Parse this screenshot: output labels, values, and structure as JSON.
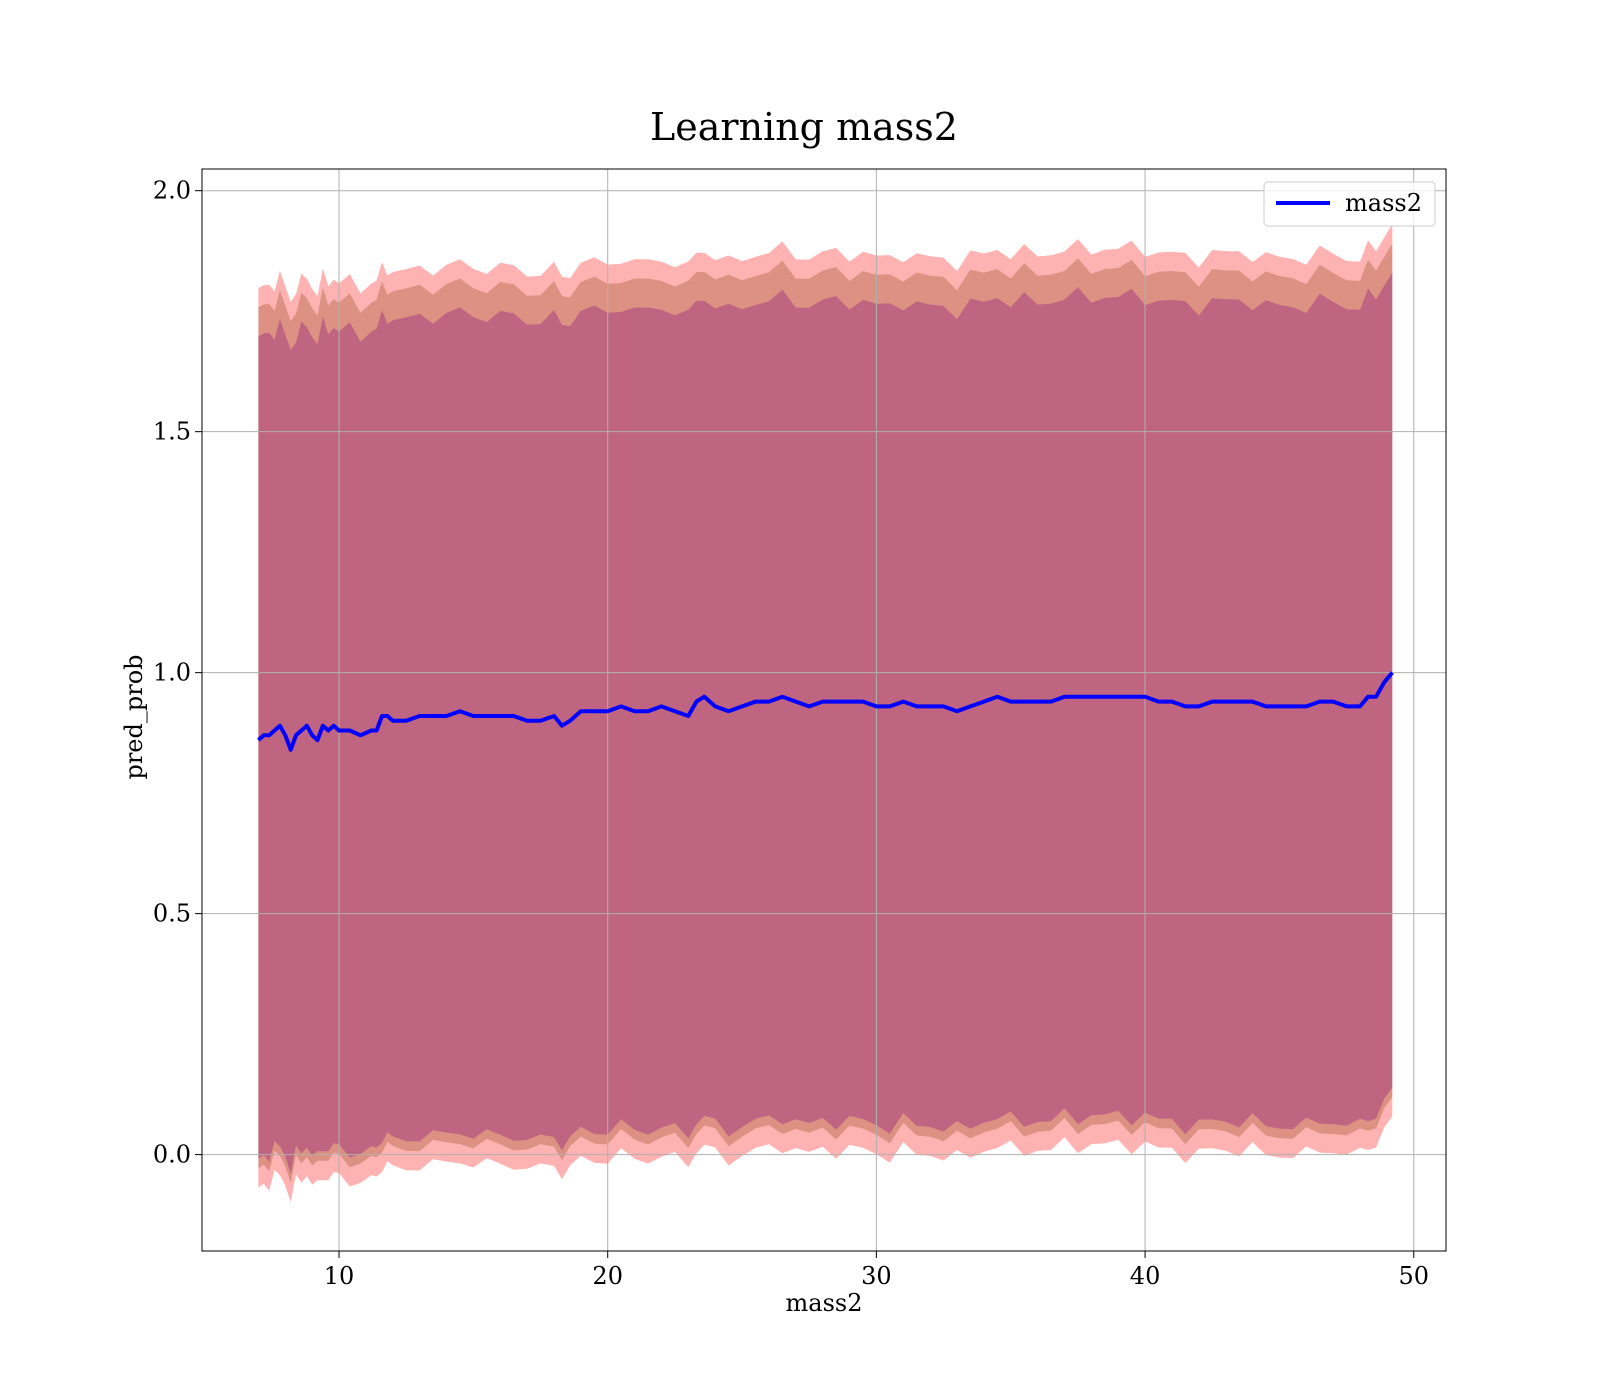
{
  "chart_data": {
    "type": "line",
    "title": "Learning mass2",
    "xlabel": "mass2",
    "ylabel": "pred_prob",
    "xlim": [
      4.9,
      51.2
    ],
    "ylim": [
      -0.2,
      2.045
    ],
    "xticks": [
      10,
      20,
      30,
      40,
      50
    ],
    "yticks": [
      0.0,
      0.5,
      1.0,
      1.5,
      2.0
    ],
    "xtick_labels": [
      "10",
      "20",
      "30",
      "40",
      "50"
    ],
    "ytick_labels": [
      "0.0",
      "0.5",
      "1.0",
      "1.5",
      "2.0"
    ],
    "grid": true,
    "legend": {
      "position": "top-right",
      "entries": [
        "mass2"
      ]
    },
    "colors": {
      "line": "#0000ff",
      "outer_band": "#ff0000",
      "inner_band": "#8b4513",
      "core_band": "#800080",
      "grid": "#b0b0b0"
    },
    "band_opacity": {
      "outer": 0.3,
      "inner": 0.3,
      "core": 0.3
    },
    "band_halfwidths": {
      "outer": 0.93,
      "inner": 0.89,
      "core": 0.87
    },
    "series": [
      {
        "name": "mass2",
        "x": [
          7.0,
          7.2,
          7.4,
          7.6,
          7.8,
          8.0,
          8.2,
          8.4,
          8.6,
          8.8,
          9.0,
          9.2,
          9.4,
          9.6,
          9.8,
          10.0,
          10.4,
          10.8,
          11.2,
          11.4,
          11.6,
          11.8,
          12.0,
          12.5,
          13.0,
          13.5,
          14.0,
          14.5,
          15.0,
          15.5,
          16.0,
          16.5,
          17.0,
          17.5,
          18.0,
          18.3,
          18.6,
          19.0,
          19.5,
          20.0,
          20.5,
          21.0,
          21.5,
          22.0,
          22.5,
          23.0,
          23.3,
          23.6,
          24.0,
          24.5,
          25.0,
          25.5,
          26.0,
          26.5,
          27.0,
          27.5,
          28.0,
          28.5,
          29.0,
          29.5,
          30.0,
          30.5,
          31.0,
          31.5,
          32.0,
          32.5,
          33.0,
          33.5,
          34.0,
          34.5,
          35.0,
          35.5,
          36.0,
          36.5,
          37.0,
          37.5,
          38.0,
          38.5,
          39.0,
          39.5,
          40.0,
          40.5,
          41.0,
          41.5,
          42.0,
          42.5,
          43.0,
          43.5,
          44.0,
          44.5,
          45.0,
          45.5,
          46.0,
          46.5,
          47.0,
          47.5,
          48.0,
          48.3,
          48.6,
          48.9,
          49.2
        ],
        "y": [
          0.86,
          0.87,
          0.87,
          0.88,
          0.89,
          0.87,
          0.84,
          0.87,
          0.88,
          0.89,
          0.87,
          0.86,
          0.89,
          0.88,
          0.89,
          0.88,
          0.88,
          0.87,
          0.88,
          0.88,
          0.91,
          0.91,
          0.9,
          0.9,
          0.91,
          0.91,
          0.91,
          0.92,
          0.91,
          0.91,
          0.91,
          0.91,
          0.9,
          0.9,
          0.91,
          0.89,
          0.9,
          0.92,
          0.92,
          0.92,
          0.93,
          0.92,
          0.92,
          0.93,
          0.92,
          0.91,
          0.94,
          0.95,
          0.93,
          0.92,
          0.93,
          0.94,
          0.94,
          0.95,
          0.94,
          0.93,
          0.94,
          0.94,
          0.94,
          0.94,
          0.93,
          0.93,
          0.94,
          0.93,
          0.93,
          0.93,
          0.92,
          0.93,
          0.94,
          0.95,
          0.94,
          0.94,
          0.94,
          0.94,
          0.95,
          0.95,
          0.95,
          0.95,
          0.95,
          0.95,
          0.95,
          0.94,
          0.94,
          0.93,
          0.93,
          0.94,
          0.94,
          0.94,
          0.94,
          0.93,
          0.93,
          0.93,
          0.93,
          0.94,
          0.94,
          0.93,
          0.93,
          0.95,
          0.95,
          0.98,
          1.0
        ]
      }
    ]
  }
}
